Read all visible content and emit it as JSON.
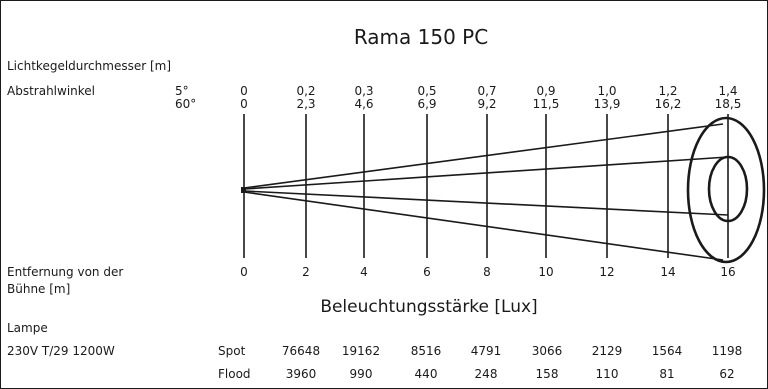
{
  "title": "Rama 150 PC",
  "labels": {
    "diameter": "Lichtkegeldurchmesser [m]",
    "angle": "Abstrahlwinkel",
    "distance_line1": "Entfernung von der",
    "distance_line2": "Bühne [m]",
    "illuminance": "Beleuchtungsstärke [Lux]",
    "lamp": "Lampe",
    "lamp_type": "230V T/29 1200W"
  },
  "angles": [
    "5°",
    "60°"
  ],
  "diameter_spot": [
    "0",
    "0,2",
    "0,3",
    "0,5",
    "0,7",
    "0,9",
    "1,0",
    "1,2",
    "1,4"
  ],
  "diameter_flood": [
    "0",
    "2,3",
    "4,6",
    "6,9",
    "9,2",
    "11,5",
    "13,9",
    "16,2",
    "18,5"
  ],
  "distances": [
    "0",
    "2",
    "4",
    "6",
    "8",
    "10",
    "12",
    "14",
    "16"
  ],
  "lux_rows": [
    {
      "name": "Spot",
      "values": [
        "76648",
        "19162",
        "8516",
        "4791",
        "3066",
        "2129",
        "1564",
        "1198"
      ]
    },
    {
      "name": "Flood",
      "values": [
        "3960",
        "990",
        "440",
        "248",
        "158",
        "110",
        "81",
        "62"
      ]
    }
  ],
  "colors": {
    "ink": "#1a1a1a",
    "background": "#ffffff"
  }
}
